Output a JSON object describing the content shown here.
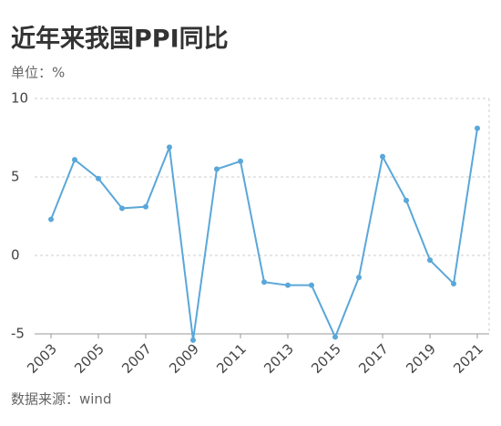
{
  "chart_data": {
    "type": "line",
    "title": "近年来我国PPI同比",
    "subtitle": "单位：%",
    "source": "数据来源：wind",
    "x": [
      2003,
      2004,
      2005,
      2006,
      2007,
      2008,
      2009,
      2010,
      2011,
      2012,
      2013,
      2014,
      2015,
      2016,
      2017,
      2018,
      2019,
      2020,
      2021
    ],
    "series": [
      {
        "name": "PPI同比",
        "color": "#5aa7d9",
        "values": [
          2.3,
          6.1,
          4.9,
          3.0,
          3.1,
          6.9,
          -5.4,
          5.5,
          6.0,
          -1.7,
          -1.9,
          -1.9,
          -5.2,
          -1.4,
          6.3,
          3.5,
          -0.3,
          -1.8,
          8.1
        ]
      }
    ],
    "xlim": [
      2003,
      2021
    ],
    "xticks": [
      2003,
      2005,
      2007,
      2009,
      2011,
      2013,
      2015,
      2017,
      2019,
      2021
    ],
    "ylim": [
      -5,
      10
    ],
    "yticks": [
      -5,
      0,
      5,
      10
    ],
    "grid": true
  }
}
